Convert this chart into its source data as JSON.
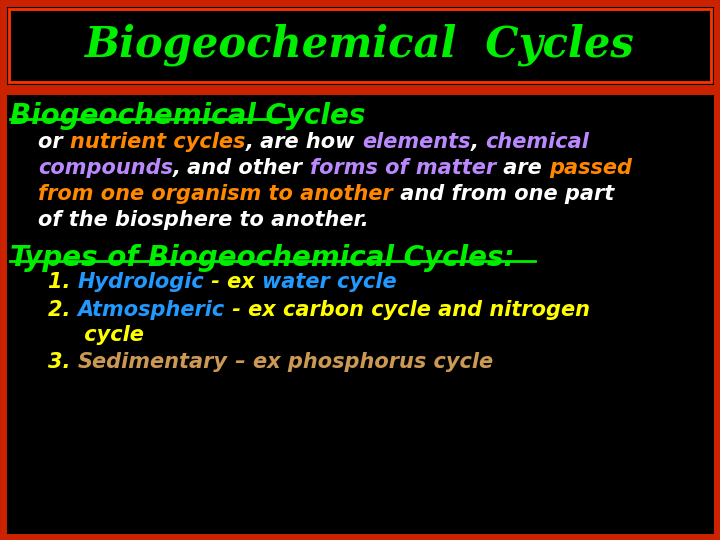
{
  "bg_color": "#000000",
  "header_border_color": "#cc2200",
  "header_text": "Biogeochemical  Cycles",
  "header_text_color": "#00ee00",
  "title1_text": "Biogeochemical Cycles",
  "title1_color": "#00ee00",
  "types_text": "Types of Biogeochemical Cycles:",
  "types_color": "#00ee00",
  "paragraph_segments": [
    [
      {
        "text": "or ",
        "color": "#ffffff"
      },
      {
        "text": "nutrient cycles",
        "color": "#ff8800"
      },
      {
        "text": ", are how ",
        "color": "#ffffff"
      },
      {
        "text": "elements",
        "color": "#bb88ff"
      },
      {
        "text": ", ",
        "color": "#ffffff"
      },
      {
        "text": "chemical",
        "color": "#bb88ff"
      }
    ],
    [
      {
        "text": "compounds",
        "color": "#bb88ff"
      },
      {
        "text": ", and other ",
        "color": "#ffffff"
      },
      {
        "text": "forms of matter",
        "color": "#bb88ff"
      },
      {
        "text": " are ",
        "color": "#ffffff"
      },
      {
        "text": "passed",
        "color": "#ff8800"
      }
    ],
    [
      {
        "text": "from one organism to another",
        "color": "#ff8800"
      },
      {
        "text": " and from one part",
        "color": "#ffffff"
      }
    ],
    [
      {
        "text": "of the biosphere to another.",
        "color": "#ffffff"
      }
    ]
  ],
  "list_items": [
    [
      {
        "text": "1. ",
        "color": "#ffff00"
      },
      {
        "text": "Hydrologic",
        "color": "#2299ff"
      },
      {
        "text": " - ex ",
        "color": "#ffff00"
      },
      {
        "text": "water cycle",
        "color": "#2299ff"
      }
    ],
    [
      {
        "text": "2. ",
        "color": "#ffff00"
      },
      {
        "text": "Atmospheric",
        "color": "#2299ff"
      },
      {
        "text": " - ex carbon cycle and nitrogen",
        "color": "#ffff00"
      }
    ],
    [
      {
        "text": "     cycle",
        "color": "#ffff00"
      }
    ],
    [
      {
        "text": "3. ",
        "color": "#ffff00"
      },
      {
        "text": "Sedimentary",
        "color": "#cc9955"
      },
      {
        "text": " – ex phosphorus cycle",
        "color": "#cc9955"
      }
    ]
  ]
}
